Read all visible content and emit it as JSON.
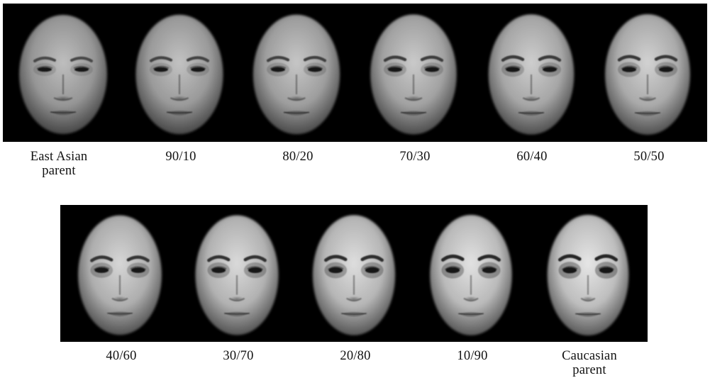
{
  "top_row": {
    "faces": [
      {
        "label_line1": "East Asian",
        "label_line2": "parent",
        "asian_share": 1.0
      },
      {
        "label_line1": "90/10",
        "label_line2": "",
        "asian_share": 0.9
      },
      {
        "label_line1": "80/20",
        "label_line2": "",
        "asian_share": 0.8
      },
      {
        "label_line1": "70/30",
        "label_line2": "",
        "asian_share": 0.7
      },
      {
        "label_line1": "60/40",
        "label_line2": "",
        "asian_share": 0.6
      },
      {
        "label_line1": "50/50",
        "label_line2": "",
        "asian_share": 0.5
      }
    ]
  },
  "bottom_row": {
    "faces": [
      {
        "label_line1": "40/60",
        "label_line2": "",
        "asian_share": 0.4
      },
      {
        "label_line1": "30/70",
        "label_line2": "",
        "asian_share": 0.3
      },
      {
        "label_line1": "20/80",
        "label_line2": "",
        "asian_share": 0.2
      },
      {
        "label_line1": "10/90",
        "label_line2": "",
        "asian_share": 0.1
      },
      {
        "label_line1": "Caucasian",
        "label_line2": "parent",
        "asian_share": 0.0
      }
    ]
  },
  "colors": {
    "background": "#ffffff",
    "strip": "#000000",
    "label_text": "#111111"
  }
}
